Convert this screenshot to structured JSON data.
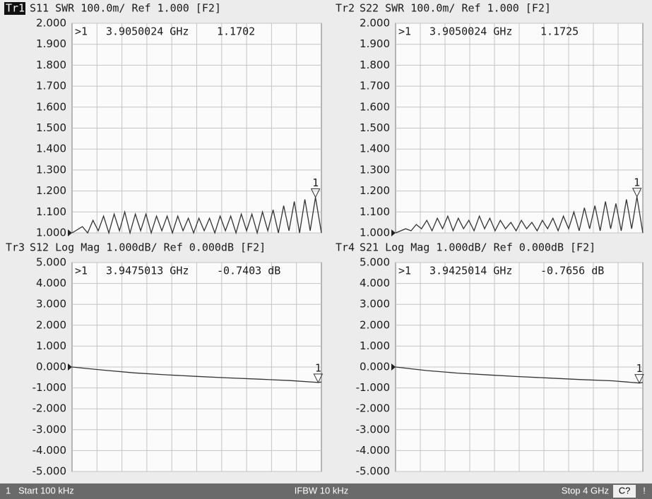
{
  "chart_data": [
    {
      "type": "line",
      "trace": "Tr1",
      "title": "S11 SWR 100.0m/ Ref 1.000 [F2]",
      "color": "#333333",
      "marker": {
        "label": ">1",
        "id": "1",
        "x": 3.9050024,
        "x_label": "3.9050024 GHz",
        "value": 1.1702
      },
      "xlim": [
        0.0001,
        4
      ],
      "ylim": [
        1,
        2
      ],
      "yticks": [
        {
          "value": 2,
          "label": "2.000"
        },
        {
          "value": 1.9,
          "label": "1.900"
        },
        {
          "value": 1.8,
          "label": "1.800"
        },
        {
          "value": 1.7,
          "label": "1.700"
        },
        {
          "value": 1.6,
          "label": "1.600"
        },
        {
          "value": 1.5,
          "label": "1.500"
        },
        {
          "value": 1.4,
          "label": "1.400"
        },
        {
          "value": 1.3,
          "label": "1.300"
        },
        {
          "value": 1.2,
          "label": "1.200"
        },
        {
          "value": 1.1,
          "label": "1.100"
        },
        {
          "value": 1,
          "label": "1.000"
        }
      ],
      "x": [
        0.0001,
        0.165,
        0.25,
        0.335,
        0.42,
        0.505,
        0.59,
        0.675,
        0.76,
        0.845,
        0.93,
        1.015,
        1.1,
        1.185,
        1.27,
        1.355,
        1.44,
        1.525,
        1.61,
        1.695,
        1.78,
        1.865,
        1.95,
        2.035,
        2.12,
        2.205,
        2.29,
        2.375,
        2.46,
        2.545,
        2.63,
        2.715,
        2.8,
        2.885,
        2.97,
        3.055,
        3.14,
        3.225,
        3.31,
        3.395,
        3.48,
        3.565,
        3.65,
        3.735,
        3.82,
        3.905,
        4
      ],
      "values": [
        1.0,
        1.03,
        1.0,
        1.06,
        1.01,
        1.08,
        1.0,
        1.09,
        1.01,
        1.1,
        1.0,
        1.09,
        1.01,
        1.09,
        1.0,
        1.08,
        1.01,
        1.08,
        1.0,
        1.08,
        1.01,
        1.07,
        1.0,
        1.07,
        1.01,
        1.07,
        1.0,
        1.08,
        1.01,
        1.08,
        1.0,
        1.09,
        1.01,
        1.09,
        1.0,
        1.1,
        1.01,
        1.11,
        1.0,
        1.13,
        1.01,
        1.15,
        1.0,
        1.16,
        1.01,
        1.1702,
        1.0
      ]
    },
    {
      "type": "line",
      "trace": "Tr2",
      "title": "S22 SWR 100.0m/ Ref 1.000 [F2]",
      "color": "#333333",
      "marker": {
        "label": ">1",
        "id": "1",
        "x": 3.9050024,
        "x_label": "3.9050024 GHz",
        "value": 1.1725
      },
      "xlim": [
        0.0001,
        4
      ],
      "ylim": [
        1,
        2
      ],
      "yticks": [
        {
          "value": 2,
          "label": "2.000"
        },
        {
          "value": 1.9,
          "label": "1.900"
        },
        {
          "value": 1.8,
          "label": "1.800"
        },
        {
          "value": 1.7,
          "label": "1.700"
        },
        {
          "value": 1.6,
          "label": "1.600"
        },
        {
          "value": 1.5,
          "label": "1.500"
        },
        {
          "value": 1.4,
          "label": "1.400"
        },
        {
          "value": 1.3,
          "label": "1.300"
        },
        {
          "value": 1.2,
          "label": "1.200"
        },
        {
          "value": 1.1,
          "label": "1.100"
        },
        {
          "value": 1,
          "label": "1.000"
        }
      ],
      "x": [
        0.0001,
        0.165,
        0.25,
        0.335,
        0.42,
        0.505,
        0.59,
        0.675,
        0.76,
        0.845,
        0.93,
        1.015,
        1.1,
        1.185,
        1.27,
        1.355,
        1.44,
        1.525,
        1.61,
        1.695,
        1.78,
        1.865,
        1.95,
        2.035,
        2.12,
        2.205,
        2.29,
        2.375,
        2.46,
        2.545,
        2.63,
        2.715,
        2.8,
        2.885,
        2.97,
        3.055,
        3.14,
        3.225,
        3.31,
        3.395,
        3.48,
        3.565,
        3.65,
        3.735,
        3.82,
        3.905,
        4
      ],
      "values": [
        1.0,
        1.02,
        1.01,
        1.04,
        1.02,
        1.06,
        1.01,
        1.07,
        1.02,
        1.08,
        1.01,
        1.07,
        1.02,
        1.06,
        1.01,
        1.08,
        1.02,
        1.07,
        1.01,
        1.06,
        1.02,
        1.05,
        1.01,
        1.06,
        1.02,
        1.05,
        1.01,
        1.06,
        1.02,
        1.07,
        1.01,
        1.08,
        1.02,
        1.1,
        1.01,
        1.12,
        1.02,
        1.13,
        1.01,
        1.15,
        1.02,
        1.14,
        1.01,
        1.16,
        1.02,
        1.1725,
        1.0
      ]
    },
    {
      "type": "line",
      "trace": "Tr3",
      "title": "S12 Log Mag 1.000dB/ Ref 0.000dB [F2]",
      "color": "#333333",
      "marker": {
        "label": ">1",
        "id": "1",
        "x": 3.9475013,
        "x_label": "3.9475013 GHz",
        "value": -0.7403,
        "value_label": "-0.7403 dB"
      },
      "xlim": [
        0.0001,
        4
      ],
      "ylim": [
        -5,
        5
      ],
      "yticks": [
        {
          "value": 5,
          "label": "5.000"
        },
        {
          "value": 4,
          "label": "4.000"
        },
        {
          "value": 3,
          "label": "3.000"
        },
        {
          "value": 2,
          "label": "2.000"
        },
        {
          "value": 1,
          "label": "1.000"
        },
        {
          "value": 0,
          "label": "0.000"
        },
        {
          "value": -1,
          "label": "-1.000"
        },
        {
          "value": -2,
          "label": "-2.000"
        },
        {
          "value": -3,
          "label": "-3.000"
        },
        {
          "value": -4,
          "label": "-4.000"
        },
        {
          "value": -5,
          "label": "-5.000"
        }
      ],
      "x": [
        0.0001,
        0.5,
        1,
        1.5,
        2,
        2.5,
        3,
        3.5,
        3.9475013,
        4
      ],
      "values": [
        0,
        -0.15,
        -0.28,
        -0.37,
        -0.45,
        -0.52,
        -0.58,
        -0.65,
        -0.7403,
        -0.72
      ]
    },
    {
      "type": "line",
      "trace": "Tr4",
      "title": "S21 Log Mag 1.000dB/ Ref 0.000dB [F2]",
      "color": "#333333",
      "marker": {
        "label": ">1",
        "id": "1",
        "x": 3.9425014,
        "x_label": "3.9425014 GHz",
        "value": -0.7656,
        "value_label": "-0.7656 dB"
      },
      "xlim": [
        0.0001,
        4
      ],
      "ylim": [
        -5,
        5
      ],
      "yticks": [
        {
          "value": 5,
          "label": "5.000"
        },
        {
          "value": 4,
          "label": "4.000"
        },
        {
          "value": 3,
          "label": "3.000"
        },
        {
          "value": 2,
          "label": "2.000"
        },
        {
          "value": 1,
          "label": "1.000"
        },
        {
          "value": 0,
          "label": "0.000"
        },
        {
          "value": -1,
          "label": "-1.000"
        },
        {
          "value": -2,
          "label": "-2.000"
        },
        {
          "value": -3,
          "label": "-3.000"
        },
        {
          "value": -4,
          "label": "-4.000"
        },
        {
          "value": -5,
          "label": "-5.000"
        }
      ],
      "x": [
        0.0001,
        0.5,
        1,
        1.5,
        2,
        2.5,
        3,
        3.5,
        3.9425014,
        4
      ],
      "values": [
        0,
        -0.17,
        -0.29,
        -0.38,
        -0.46,
        -0.53,
        -0.6,
        -0.66,
        -0.7656,
        -0.74
      ]
    }
  ],
  "status_bar": {
    "channel": "1",
    "start": "Start 100 kHz",
    "ifbw": "IFBW 10 kHz",
    "stop": "Stop 4 GHz",
    "cal": "C?",
    "alert": "!"
  }
}
